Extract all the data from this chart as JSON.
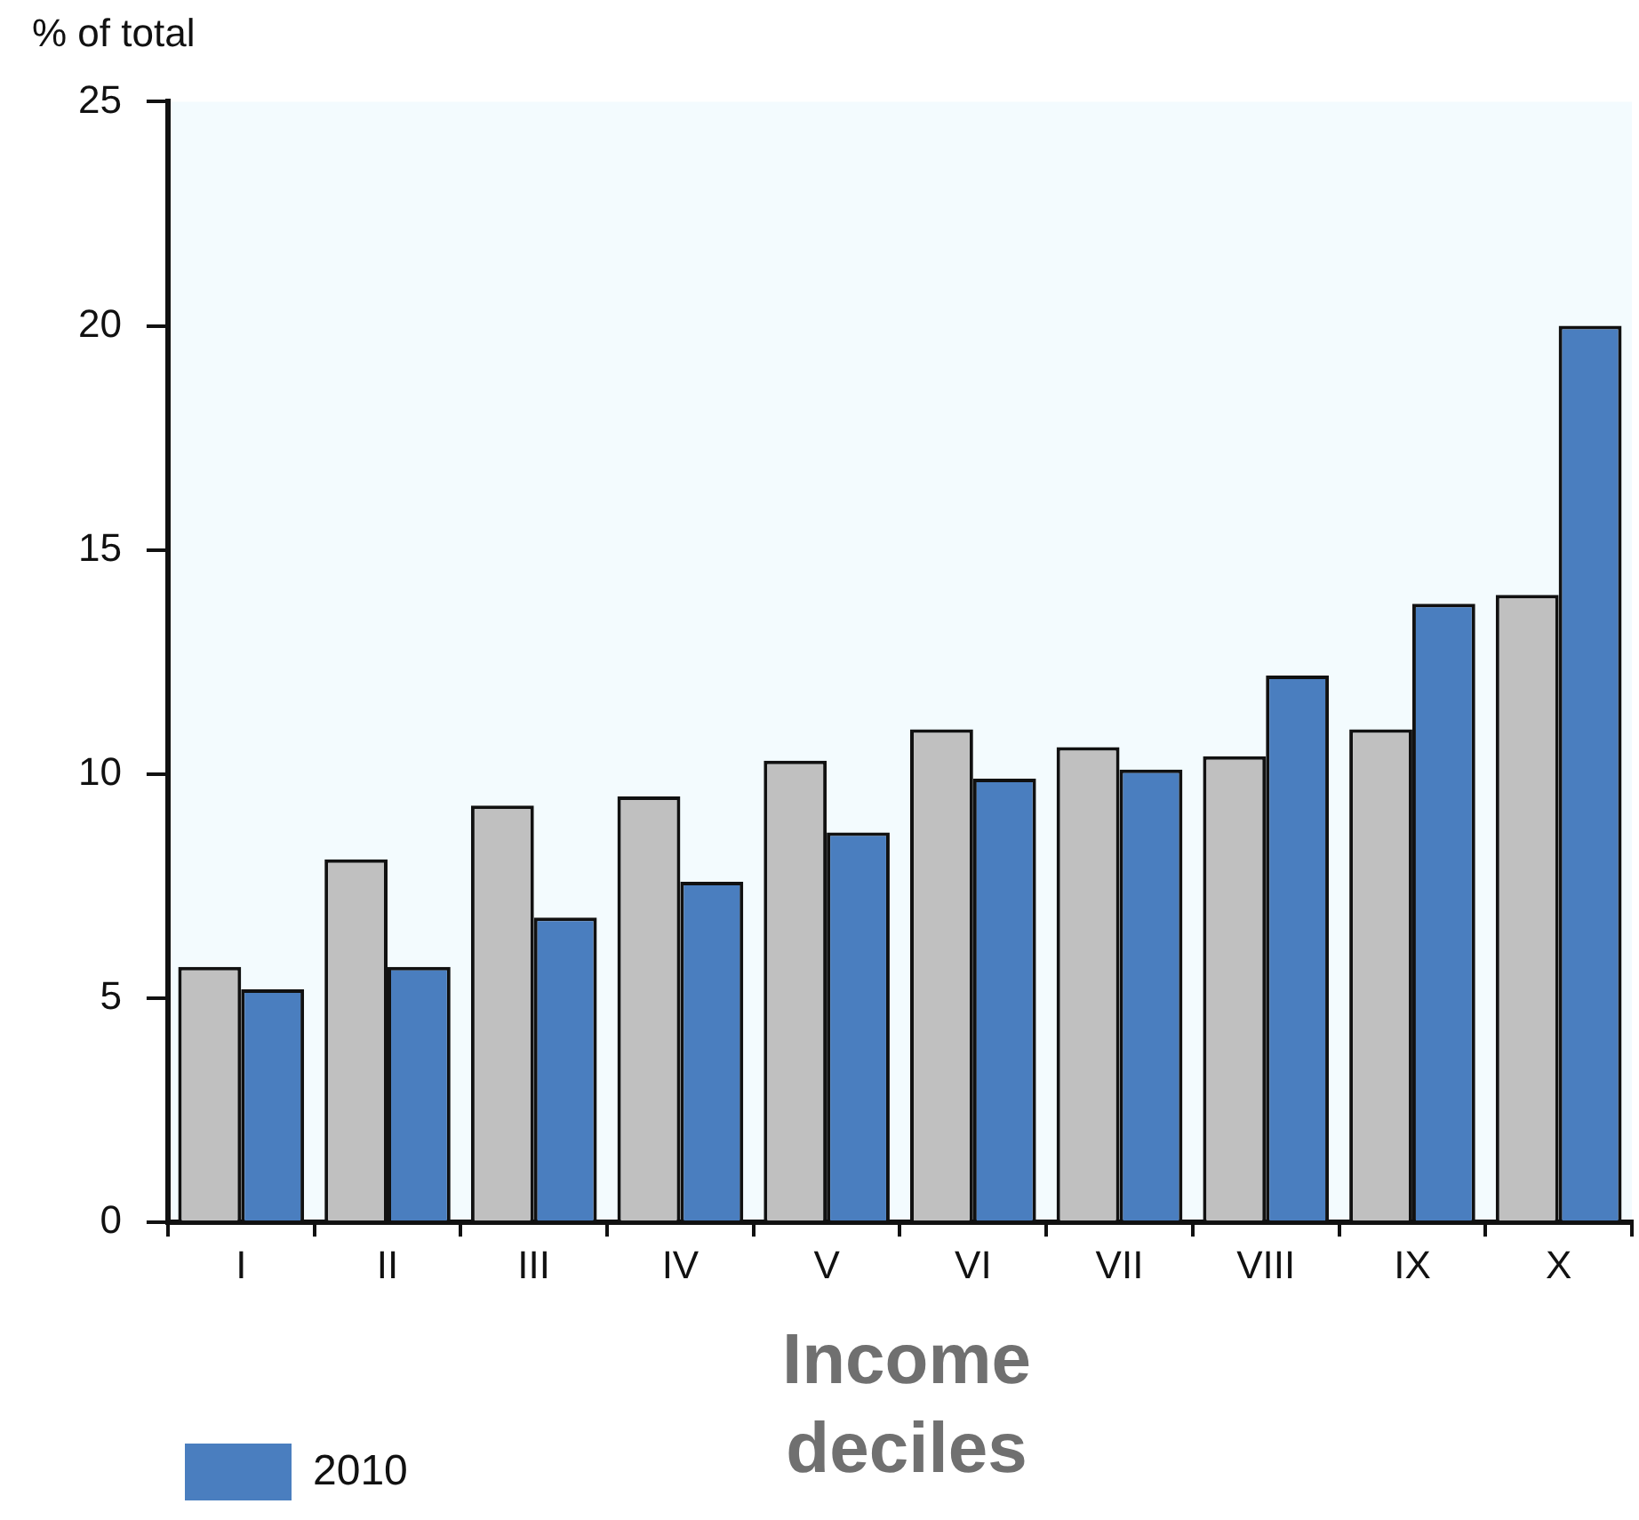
{
  "chart_data": {
    "type": "bar",
    "ylabel": "% of total",
    "xlabel": "Income deciles",
    "categories": [
      "I",
      "II",
      "III",
      "IV",
      "V",
      "VI",
      "VII",
      "VIII",
      "IX",
      "X"
    ],
    "series": [
      {
        "color": "#c0c0c0",
        "values": [
          5.7,
          8.1,
          9.3,
          9.5,
          10.3,
          11.0,
          10.6,
          10.4,
          11.0,
          14.0
        ]
      },
      {
        "name": "2010",
        "color": "#4a7ebf",
        "values": [
          5.2,
          5.7,
          6.8,
          7.6,
          8.7,
          9.9,
          10.1,
          12.2,
          13.8,
          20.0
        ]
      }
    ],
    "ylim": [
      0,
      25
    ],
    "yticks": [
      0,
      5,
      10,
      15,
      20,
      25
    ],
    "grid": false,
    "legend": "bottom left"
  }
}
